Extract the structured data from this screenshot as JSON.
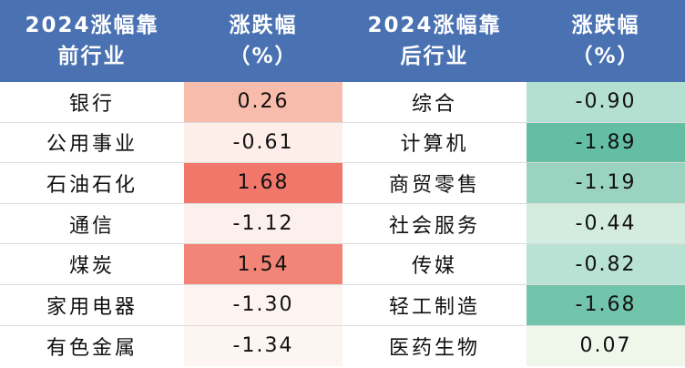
{
  "header": {
    "col1": [
      "2024涨幅靠",
      "前行业"
    ],
    "col2": [
      "涨跌幅",
      "（%）"
    ],
    "col3": [
      "2024涨幅靠",
      "后行业"
    ],
    "col4": [
      "涨跌幅",
      "（%）"
    ]
  },
  "rows": [
    {
      "left_name": "银行",
      "left_value": "0.26",
      "left_color": "#f8bcac",
      "right_name": "综合",
      "right_value": "-0.90",
      "right_color": "#b3e0d0"
    },
    {
      "left_name": "公用事业",
      "left_value": "-0.61",
      "left_color": "#fdeee9",
      "right_name": "计算机",
      "right_value": "-1.89",
      "right_color": "#63bea4"
    },
    {
      "left_name": "石油石化",
      "left_value": "1.68",
      "left_color": "#f0776a",
      "right_name": "商贸零售",
      "right_value": "-1.19",
      "right_color": "#9ad4c0"
    },
    {
      "left_name": "通信",
      "left_value": "-1.12",
      "left_color": "#fcf0ec",
      "right_name": "社会服务",
      "right_value": "-0.44",
      "right_color": "#d3ecdf"
    },
    {
      "left_name": "煤炭",
      "left_value": "1.54",
      "left_color": "#f28577",
      "right_name": "传媒",
      "right_value": "-0.82",
      "right_color": "#b8e2d3"
    },
    {
      "left_name": "家用电器",
      "left_value": "-1.30",
      "left_color": "#fdf3f0",
      "right_name": "轻工制造",
      "right_value": "-1.68",
      "right_color": "#72c4ab"
    },
    {
      "left_name": "有色金属",
      "left_value": "-1.34",
      "left_color": "#fdf5f2",
      "right_name": "医药生物",
      "right_value": "0.07",
      "right_color": "#eef7ea"
    }
  ]
}
